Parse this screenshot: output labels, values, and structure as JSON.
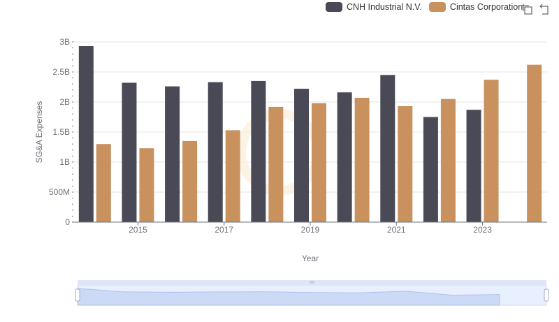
{
  "chart_data": {
    "type": "bar",
    "xlabel": "Year",
    "ylabel": "SG&A Expenses",
    "ylim": [
      0,
      3000000000
    ],
    "y_ticks": [
      {
        "value": 0,
        "label": "0"
      },
      {
        "value": 500000000,
        "label": "500M"
      },
      {
        "value": 1000000000,
        "label": "1B"
      },
      {
        "value": 1500000000,
        "label": "1.5B"
      },
      {
        "value": 2000000000,
        "label": "2B"
      },
      {
        "value": 2500000000,
        "label": "2.5B"
      },
      {
        "value": 3000000000,
        "label": "3B"
      }
    ],
    "categories": [
      "2014",
      "2015",
      "2016",
      "2017",
      "2018",
      "2019",
      "2020",
      "2021",
      "2022",
      "2023",
      "2024"
    ],
    "x_tick_labels": [
      "2015",
      "2017",
      "2019",
      "2021",
      "2023"
    ],
    "series": [
      {
        "name": "CNH Industrial N.V.",
        "color": "#4a4a56",
        "values": [
          2930000000,
          2320000000,
          2260000000,
          2330000000,
          2350000000,
          2220000000,
          2160000000,
          2450000000,
          1750000000,
          1870000000,
          null
        ]
      },
      {
        "name": "Cintas Corporation",
        "color": "#c8915e",
        "values": [
          1300000000,
          1230000000,
          1350000000,
          1530000000,
          1920000000,
          1980000000,
          2070000000,
          1930000000,
          2050000000,
          2370000000,
          2620000000
        ]
      }
    ],
    "grid": true,
    "legend_position": "top-right"
  },
  "toolbox": {
    "zoom_icon": "zoom-icon",
    "restore_icon": "restore-icon"
  }
}
